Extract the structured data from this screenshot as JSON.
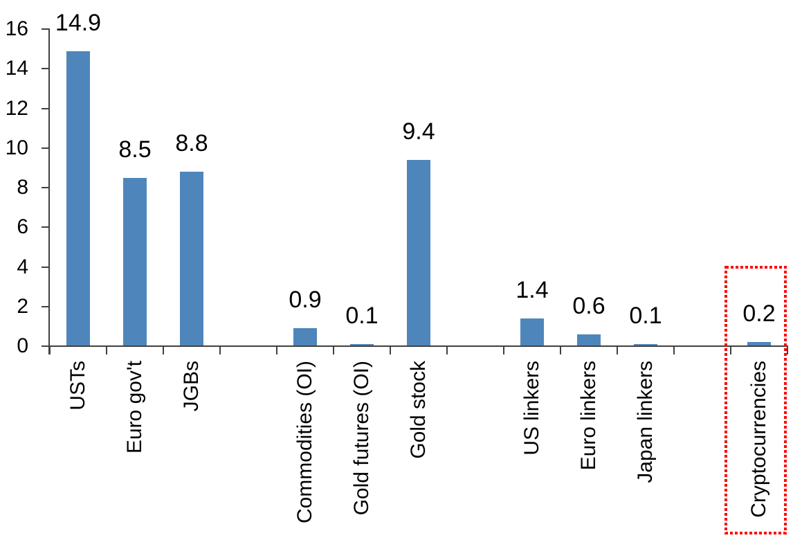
{
  "chart_data": {
    "type": "bar",
    "title": "",
    "xlabel": "",
    "ylabel": "",
    "categories": [
      "USTs",
      "Euro gov't",
      "JGBs",
      "",
      "Commodities (OI)",
      "Gold futures (OI)",
      "Gold stock",
      "",
      "US linkers",
      "Euro linkers",
      "Japan linkers",
      "",
      "Cryptocurrencies"
    ],
    "values": [
      14.9,
      8.5,
      8.8,
      null,
      0.9,
      0.1,
      9.4,
      null,
      1.4,
      0.6,
      0.1,
      null,
      0.2
    ],
    "value_labels": [
      "14.9",
      "8.5",
      "8.8",
      "",
      "0.9",
      "0.1",
      "9.4",
      "",
      "1.4",
      "0.6",
      "0.1",
      "",
      "0.2"
    ],
    "ylim": [
      0,
      16
    ],
    "yticks": [
      0,
      2,
      4,
      6,
      8,
      10,
      12,
      14,
      16
    ],
    "grid": false,
    "legend": null,
    "bar_color": "#4E86BC",
    "axis_color": "#404040",
    "label_color": "#000000",
    "highlight": {
      "target": "Cryptocurrencies",
      "shape": "dashed-rectangle",
      "color": "#FF0000"
    }
  }
}
